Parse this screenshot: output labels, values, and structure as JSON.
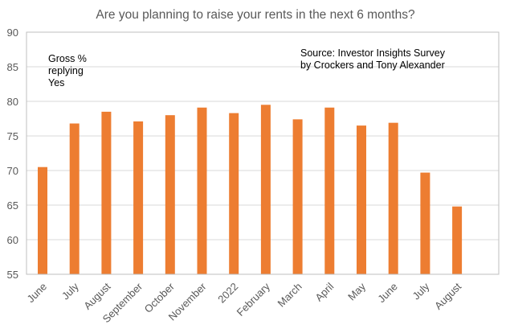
{
  "chart_data": {
    "type": "bar",
    "title": "Are you planning to raise your rents in the next 6 months?",
    "xlabel": "",
    "ylabel": "",
    "categories": [
      "June",
      "July",
      "August",
      "September",
      "October",
      "November",
      "2022",
      "February",
      "March",
      "April",
      "May",
      "June",
      "July",
      "August"
    ],
    "values": [
      70.5,
      76.8,
      78.5,
      77.1,
      78.0,
      79.1,
      78.3,
      79.5,
      77.4,
      79.1,
      76.5,
      76.9,
      69.7,
      64.8
    ],
    "ylim": [
      55,
      90
    ],
    "yticks": [
      "55",
      "60",
      "65",
      "70",
      "75",
      "80",
      "85",
      "90"
    ],
    "annotations": {
      "series_note": [
        "Gross %",
        "replying",
        "Yes"
      ],
      "source": [
        "Source: Investor Insights Survey",
        "by Crockers and Tony Alexander"
      ]
    },
    "grid": true,
    "legend": "none",
    "bar_color": "#ED7D31",
    "grid_color": "#D9D9D9",
    "text_color": "#595959"
  }
}
